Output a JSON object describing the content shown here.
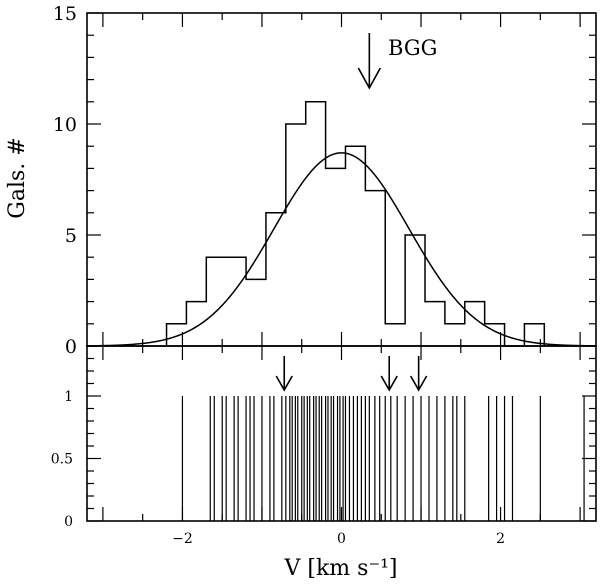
{
  "chart_data": [
    {
      "type": "bar",
      "subtype": "histogram",
      "ylabel": "Gals. #",
      "xlim": [
        -3.2,
        3.2
      ],
      "ylim": [
        0,
        15
      ],
      "xticks": [
        -2,
        0,
        2
      ],
      "yticks": [
        {
          "value": 0,
          "label": "0"
        },
        {
          "value": 5,
          "label": "5"
        },
        {
          "value": 10,
          "label": "10"
        },
        {
          "value": 15,
          "label": "15"
        }
      ],
      "bin_width": 0.25,
      "bin_edges_start": -2.2,
      "values": [
        1,
        2,
        4,
        4,
        3,
        6,
        10,
        11,
        8,
        9,
        7,
        1,
        5,
        2,
        1,
        2,
        1,
        0,
        1
      ],
      "fit": {
        "type": "gaussian",
        "mean": 0.0,
        "sigma": 0.85,
        "amplitude": 8.7
      },
      "annotations": [
        {
          "text": "BGG",
          "x": 0.35
        }
      ]
    },
    {
      "type": "scatter",
      "subtype": "stick-plot",
      "xlabel": "V [km s⁻¹]",
      "xlim": [
        -3.2,
        3.2
      ],
      "ylim": [
        0,
        1.4
      ],
      "xticks": [
        {
          "value": -2,
          "label": "−2"
        },
        {
          "value": 0,
          "label": "0"
        },
        {
          "value": 2,
          "label": "2"
        }
      ],
      "yticks": [
        {
          "value": 0,
          "label": "0"
        },
        {
          "value": 0.5,
          "label": "0.5"
        },
        {
          "value": 1,
          "label": "1"
        }
      ],
      "stick_height": 1,
      "x": [
        -2.0,
        -1.65,
        -1.6,
        -1.5,
        -1.45,
        -1.35,
        -1.3,
        -1.2,
        -1.15,
        -1.1,
        -1.0,
        -0.9,
        -0.85,
        -0.75,
        -0.7,
        -0.65,
        -0.62,
        -0.58,
        -0.55,
        -0.5,
        -0.47,
        -0.43,
        -0.4,
        -0.35,
        -0.32,
        -0.28,
        -0.25,
        -0.2,
        -0.17,
        -0.13,
        -0.1,
        -0.05,
        -0.02,
        0.02,
        0.05,
        0.1,
        0.15,
        0.2,
        0.25,
        0.3,
        0.35,
        0.42,
        0.48,
        0.55,
        0.62,
        0.7,
        0.8,
        0.9,
        1.0,
        1.1,
        1.2,
        1.3,
        1.4,
        1.45,
        1.55,
        1.85,
        1.95,
        2.05,
        2.15,
        2.5,
        3.05
      ],
      "arrows_x": [
        -0.72,
        0.6,
        0.97
      ]
    }
  ]
}
